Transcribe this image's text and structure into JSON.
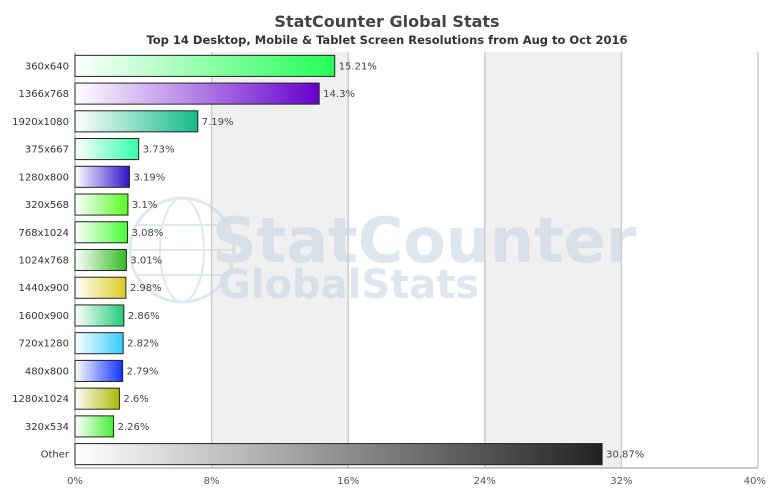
{
  "chart_data": {
    "type": "bar",
    "orientation": "horizontal",
    "title": "StatCounter Global Stats",
    "subtitle": "Top 14 Desktop, Mobile & Tablet Screen Resolutions from Aug to Oct 2016",
    "categories": [
      "360x640",
      "1366x768",
      "1920x1080",
      "375x667",
      "1280x800",
      "320x568",
      "768x1024",
      "1024x768",
      "1440x900",
      "1600x900",
      "720x1280",
      "480x800",
      "1280x1024",
      "320x534",
      "Other"
    ],
    "values": [
      15.21,
      14.3,
      7.19,
      3.73,
      3.19,
      3.1,
      3.08,
      3.01,
      2.98,
      2.86,
      2.82,
      2.79,
      2.6,
      2.26,
      30.87
    ],
    "value_labels": [
      "15.21%",
      "14.3%",
      "7.19%",
      "3.73%",
      "3.19%",
      "3.1%",
      "3.08%",
      "3.01%",
      "2.98%",
      "2.86%",
      "2.82%",
      "2.79%",
      "2.6%",
      "2.26%",
      "30.87%"
    ],
    "colors": [
      "#22ff55",
      "#6600cc",
      "#11bb88",
      "#33ffaa",
      "#3311cc",
      "#55ff22",
      "#44ff33",
      "#33bb22",
      "#ddcc22",
      "#22cc77",
      "#33ccff",
      "#1133ff",
      "#aabb00",
      "#44ee33",
      "#222222"
    ],
    "xlim": [
      0,
      40
    ],
    "xticks": [
      "0%",
      "8%",
      "16%",
      "24%",
      "32%",
      "40%"
    ],
    "xtick_values": [
      0,
      8,
      16,
      24,
      32,
      40
    ],
    "grid": true,
    "legend": "none"
  },
  "watermark": {
    "line1": "StatCounter",
    "line2": "GlobalStats"
  }
}
